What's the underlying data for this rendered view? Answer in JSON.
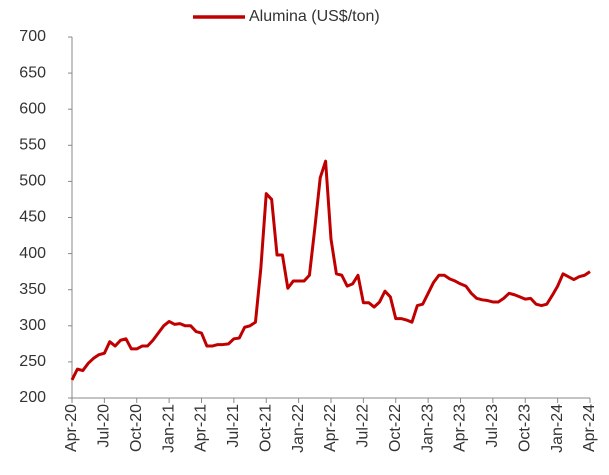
{
  "chart_data": {
    "type": "line",
    "categories": [
      "Apr-20",
      null,
      null,
      null,
      null,
      null,
      "Jul-20",
      null,
      null,
      null,
      null,
      null,
      "Oct-20",
      null,
      null,
      null,
      null,
      null,
      "Jan-21",
      null,
      null,
      null,
      null,
      null,
      "Apr-21",
      null,
      null,
      null,
      null,
      null,
      "Jul-21",
      null,
      null,
      null,
      null,
      null,
      "Oct-21",
      null,
      null,
      null,
      null,
      null,
      "Jan-22",
      null,
      null,
      null,
      null,
      null,
      "Apr-22",
      null,
      null,
      null,
      null,
      null,
      "Jul-22",
      null,
      null,
      null,
      null,
      null,
      "Oct-22",
      null,
      null,
      null,
      null,
      null,
      "Jan-23",
      null,
      null,
      null,
      null,
      null,
      "Apr-23",
      null,
      null,
      null,
      null,
      null,
      "Jul-23",
      null,
      null,
      null,
      null,
      null,
      "Oct-23",
      null,
      null,
      null,
      null,
      null,
      "Jan-24",
      null,
      null,
      null,
      null,
      null,
      "Apr-24"
    ],
    "series": [
      {
        "name": "Alumina (US$/ton)",
        "color": "#c00000",
        "values": [
          225,
          240,
          238,
          248,
          255,
          260,
          262,
          278,
          272,
          280,
          282,
          268,
          268,
          272,
          272,
          280,
          290,
          300,
          306,
          302,
          303,
          300,
          300,
          292,
          290,
          272,
          272,
          274,
          274,
          275,
          282,
          283,
          298,
          300,
          305,
          380,
          483,
          475,
          398,
          398,
          352,
          362,
          362,
          362,
          370,
          435,
          505,
          528,
          420,
          372,
          370,
          355,
          358,
          370,
          332,
          332,
          326,
          333,
          348,
          340,
          310,
          310,
          308,
          305,
          328,
          330,
          345,
          360,
          370,
          370,
          365,
          362,
          358,
          355,
          345,
          338,
          336,
          335,
          333,
          333,
          338,
          345,
          343,
          340,
          337,
          338,
          330,
          328,
          330,
          342,
          355,
          372,
          368,
          364,
          368,
          370,
          375
        ]
      }
    ],
    "ylim": [
      200,
      700
    ],
    "yticks": [
      200,
      250,
      300,
      350,
      400,
      450,
      500,
      550,
      600,
      650,
      700
    ],
    "grid": false,
    "legend": "top"
  }
}
